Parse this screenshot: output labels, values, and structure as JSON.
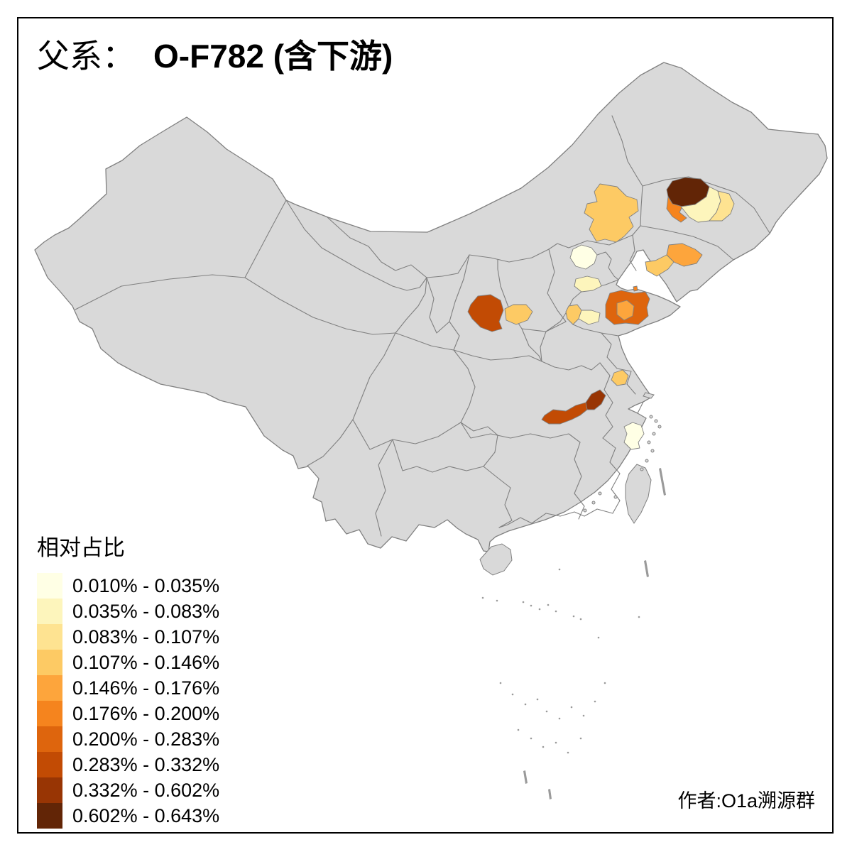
{
  "title": {
    "prefix": "父系：",
    "value": "O-F782 (含下游)"
  },
  "attribution": "作者:O1a溯源群",
  "legend": {
    "title": "相对占比",
    "classes": [
      {
        "label": "0.010% - 0.035%",
        "color": "#FFFFE5"
      },
      {
        "label": "0.035% - 0.083%",
        "color": "#FDF5BC"
      },
      {
        "label": "0.083% - 0.107%",
        "color": "#FEE391"
      },
      {
        "label": "0.107% - 0.146%",
        "color": "#FDCA64"
      },
      {
        "label": "0.146% - 0.176%",
        "color": "#FDA53C"
      },
      {
        "label": "0.176% - 0.200%",
        "color": "#F5841E"
      },
      {
        "label": "0.200% - 0.283%",
        "color": "#DE650D"
      },
      {
        "label": "0.283% - 0.332%",
        "color": "#C24B04"
      },
      {
        "label": "0.332% - 0.602%",
        "color": "#983504"
      },
      {
        "label": "0.602% - 0.643%",
        "color": "#622506"
      }
    ]
  },
  "map": {
    "land_fill": "#D9D9D9",
    "border_color": "#808080",
    "background": "#FFFFFF"
  },
  "regions": {
    "inner-mongolia-east": {
      "range": "0.107% - 0.146%",
      "color": "#FDCA64"
    },
    "jilin-northwest": {
      "range": "0.602% - 0.643%",
      "color": "#622506"
    },
    "jilin-southwest": {
      "range": "0.176% - 0.200%",
      "color": "#F5841E"
    },
    "changchun-area": {
      "range": "0.035% - 0.083%",
      "color": "#FDF5BC"
    },
    "jilin-east": {
      "range": "0.083% - 0.107%",
      "color": "#FEE391"
    },
    "liaoning-coast": {
      "range": "0.146% - 0.176%",
      "color": "#FDA53C"
    },
    "liaoning-southwest": {
      "range": "0.107% - 0.146%",
      "color": "#FDCA64"
    },
    "beijing-area": {
      "range": "0.010% - 0.035%",
      "color": "#FFFFE5"
    },
    "hebei-south": {
      "range": "0.035% - 0.083%",
      "color": "#FDF5BC"
    },
    "shandong-henan-border": {
      "range": "0.107% - 0.146%",
      "color": "#FDCA64"
    },
    "jinan-west": {
      "range": "0.035% - 0.083%",
      "color": "#FDF5BC"
    },
    "shandong-peninsula": {
      "range": "0.200% - 0.283%",
      "color": "#DE650D"
    },
    "shandong-center": {
      "range": "0.146% - 0.176%",
      "color": "#FDA53C"
    },
    "shaanxi-north": {
      "range": "0.283% - 0.332%",
      "color": "#C24B04"
    },
    "shanxi-southwest": {
      "range": "0.107% - 0.146%",
      "color": "#FDCA64"
    },
    "anhui-north": {
      "range": "0.107% - 0.146%",
      "color": "#FDCA64"
    },
    "hubei-north": {
      "range": "0.332% - 0.602%",
      "color": "#983504"
    },
    "hubei-west": {
      "range": "0.283% - 0.332%",
      "color": "#C24B04"
    },
    "zhejiang-coast": {
      "range": "0.010% - 0.035%",
      "color": "#FFFFE5"
    },
    "bohai-islet": {
      "range": "0.176% - 0.200%",
      "color": "#F5841E"
    }
  }
}
